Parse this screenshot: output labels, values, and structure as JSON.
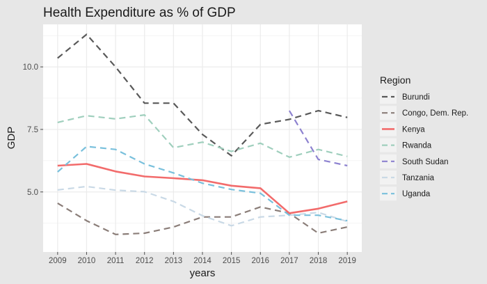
{
  "chart_data": {
    "type": "line",
    "title": "Health Expenditure as % of GDP",
    "xlabel": "years",
    "ylabel": "GDP",
    "x": [
      2009,
      2010,
      2011,
      2012,
      2013,
      2014,
      2015,
      2016,
      2017,
      2018,
      2019
    ],
    "x_tick_labels": [
      "2009",
      "2010",
      "2011",
      "2012",
      "2013",
      "2014",
      "2015",
      "2016",
      "2017",
      "2018",
      "2019"
    ],
    "y_ticks": [
      5.0,
      7.5,
      10.0
    ],
    "y_tick_labels": [
      "5.0",
      "7.5",
      "10.0"
    ],
    "xlim": [
      2008.5,
      2019.5
    ],
    "ylim": [
      2.6,
      11.7
    ],
    "grid": true,
    "legend_position": "right",
    "legend_title": "Region",
    "series": [
      {
        "name": "Burundi",
        "color": "#595959",
        "dashed": true,
        "values": [
          10.35,
          11.3,
          10.0,
          8.55,
          8.55,
          7.3,
          6.45,
          7.7,
          7.9,
          8.25,
          7.98
        ]
      },
      {
        "name": "Congo, Dem. Rep.",
        "color": "#8a7d78",
        "dashed": true,
        "values": [
          4.55,
          3.85,
          3.3,
          3.35,
          3.6,
          4.0,
          4.0,
          4.4,
          4.15,
          3.35,
          3.6
        ]
      },
      {
        "name": "Kenya",
        "color": "#f26b6b",
        "dashed": false,
        "values": [
          6.05,
          6.12,
          5.82,
          5.62,
          5.55,
          5.47,
          5.25,
          5.15,
          4.15,
          4.33,
          4.62
        ]
      },
      {
        "name": "Rwanda",
        "color": "#9fcfbd",
        "dashed": true,
        "values": [
          7.78,
          8.05,
          7.92,
          8.08,
          6.77,
          6.99,
          6.62,
          6.95,
          6.39,
          6.7,
          6.42
        ]
      },
      {
        "name": "South Sudan",
        "color": "#8d82d0",
        "dashed": true,
        "values": [
          null,
          null,
          null,
          null,
          null,
          null,
          null,
          null,
          8.25,
          6.3,
          6.05
        ]
      },
      {
        "name": "Tanzania",
        "color": "#c9d9e6",
        "dashed": true,
        "values": [
          5.08,
          5.22,
          5.07,
          5.01,
          4.62,
          4.05,
          3.65,
          4.0,
          4.07,
          4.18,
          3.82
        ]
      },
      {
        "name": "Uganda",
        "color": "#79c0dc",
        "dashed": true,
        "values": [
          5.8,
          6.82,
          6.7,
          6.12,
          5.76,
          5.35,
          5.1,
          4.95,
          4.07,
          4.07,
          3.85
        ]
      }
    ]
  }
}
